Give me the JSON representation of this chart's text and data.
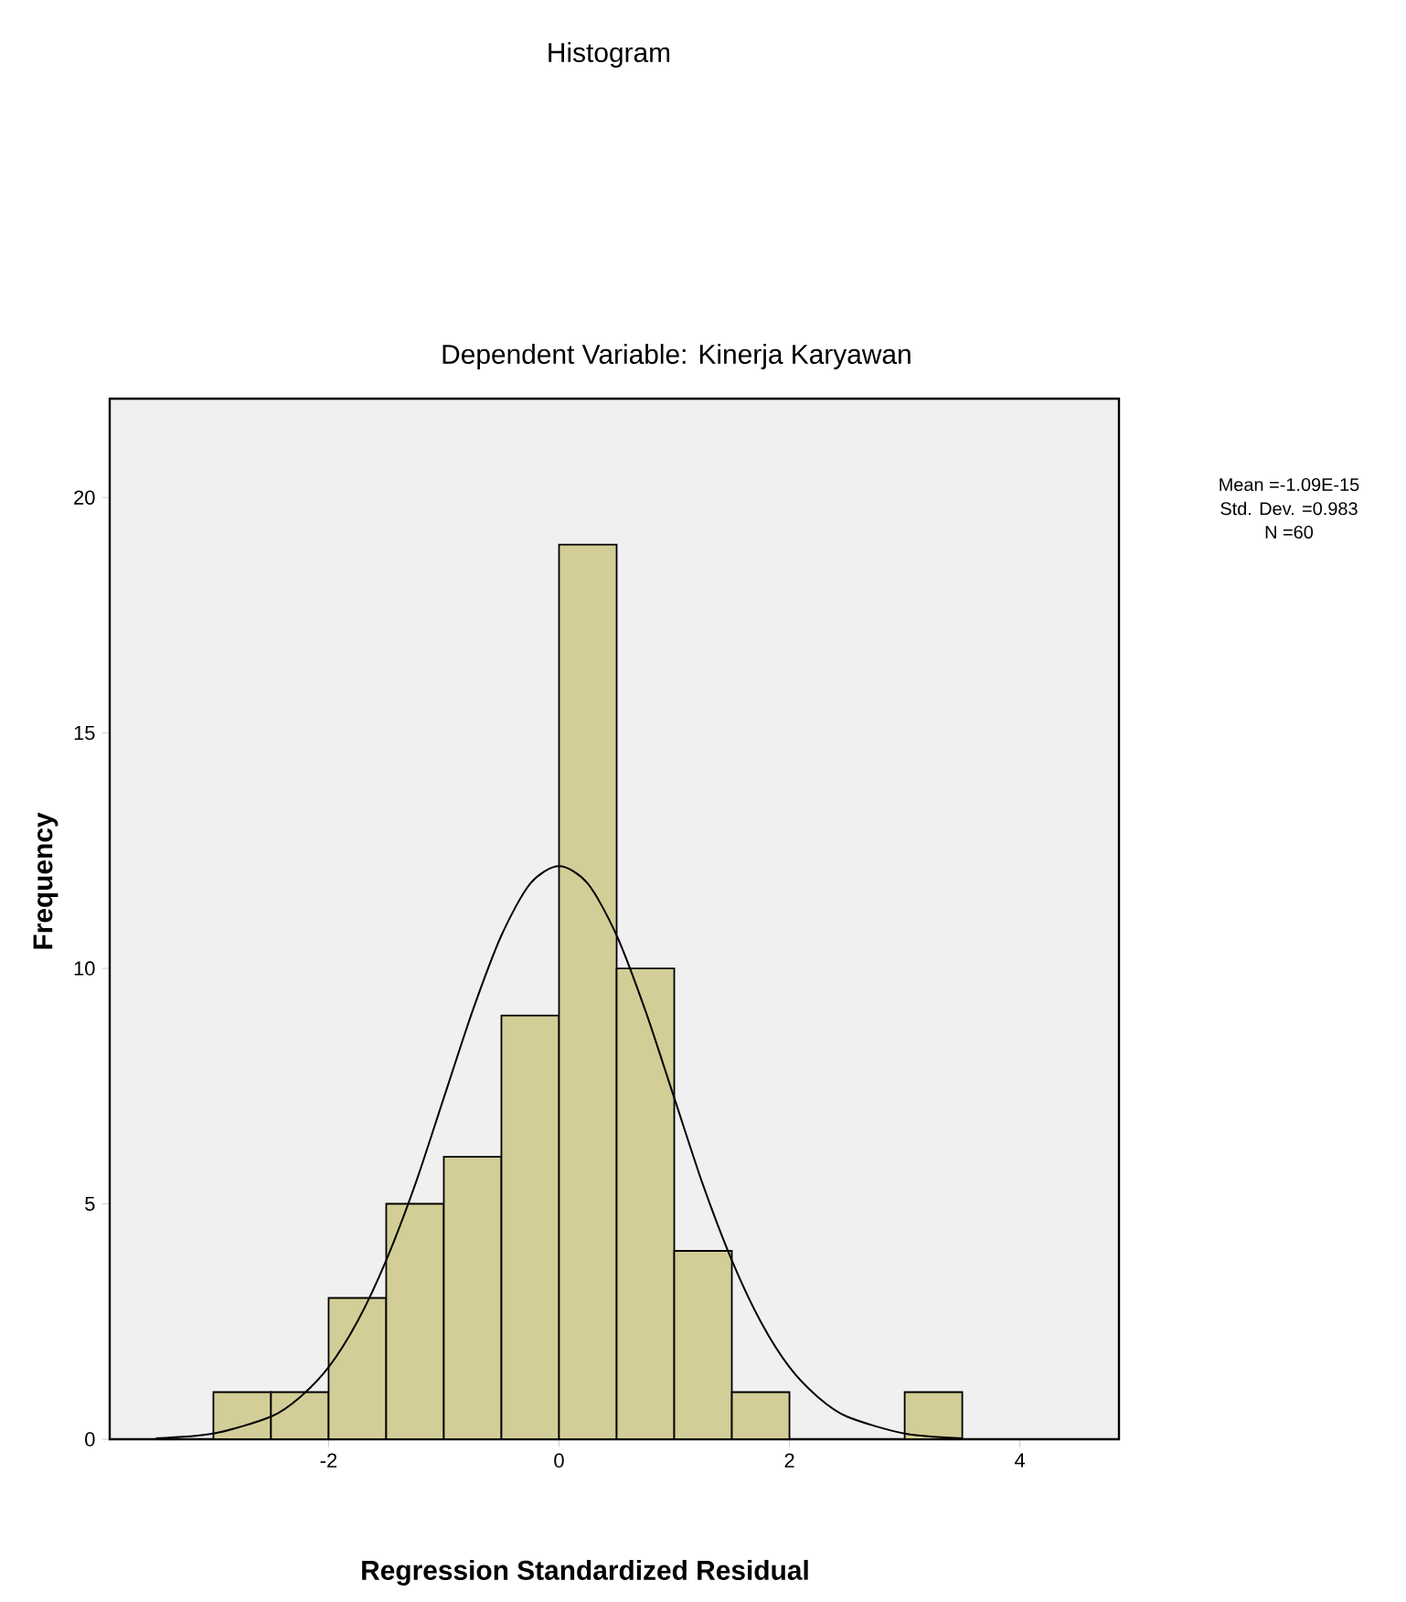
{
  "chart_data": {
    "type": "histogram",
    "title": "Histogram",
    "subtitle": "Dependent Variable: Kinerja Karyawan",
    "xlabel": "Regression Standardized Residual",
    "ylabel": "Frequency",
    "annotations": [
      "Mean =-1.09E-15",
      "Std. Dev. =0.983",
      "N =60"
    ],
    "bins": [
      -3,
      -2.5,
      -2,
      -1.5,
      -1,
      -0.5,
      0,
      0.5,
      1,
      1.5,
      2,
      2.5,
      3,
      3.5
    ],
    "values": [
      1,
      1,
      3,
      5,
      6,
      9,
      19,
      10,
      4,
      1,
      0,
      0,
      1
    ],
    "color": "#d3ce97",
    "series": [
      {
        "type": "line",
        "color": "#000000",
        "x": [
          -3.5,
          -3,
          -2.5,
          -2.25,
          -2,
          -1.75,
          -1.5,
          -1.25,
          -1,
          -0.75,
          -0.5,
          -0.25,
          0,
          0.25,
          0.5,
          0.75,
          1,
          1.25,
          1.5,
          1.75,
          2,
          2.25,
          2.5,
          3,
          3.5
        ],
        "values": [
          0.02,
          0.12,
          0.48,
          0.89,
          1.53,
          2.5,
          3.8,
          5.4,
          7.25,
          9.1,
          10.7,
          11.8,
          12.17,
          11.8,
          10.7,
          9.1,
          7.25,
          5.4,
          3.8,
          2.5,
          1.53,
          0.89,
          0.48,
          0.12,
          0.02
        ]
      }
    ],
    "xlim": [
      -3.9,
      4.86
    ],
    "ylim": [
      0,
      22.1
    ],
    "xticks": [
      -2,
      0,
      2,
      4
    ],
    "yticks": [
      0,
      5,
      10,
      15,
      20
    ]
  }
}
